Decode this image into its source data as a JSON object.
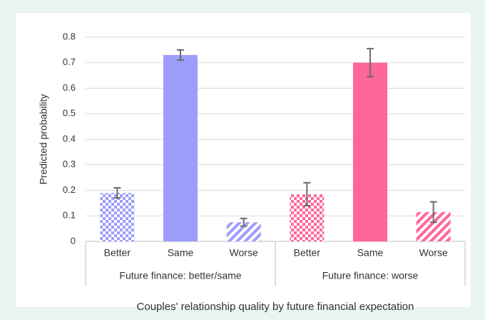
{
  "chart_data": {
    "type": "bar",
    "y_label": "Predicted probability",
    "x_label": "Couples' relationship quality by future financial expectation",
    "categories": [
      "Better",
      "Same",
      "Worse"
    ],
    "patterns": [
      "checker",
      "solid",
      "diagonal"
    ],
    "series": [
      {
        "name": "Future finance: better/same",
        "color": "#9d9dfb",
        "values": [
          0.19,
          0.73,
          0.075
        ],
        "errors": [
          0.02,
          0.02,
          0.015
        ]
      },
      {
        "name": "Future finance: worse",
        "color": "#ff6699",
        "values": [
          0.185,
          0.7,
          0.115
        ],
        "errors": [
          0.045,
          0.055,
          0.04
        ]
      }
    ],
    "ylim": [
      0,
      0.8
    ],
    "yticks": [
      0,
      0.1,
      0.2,
      0.3,
      0.4,
      0.5,
      0.6,
      0.7,
      0.8
    ],
    "grid": true
  }
}
